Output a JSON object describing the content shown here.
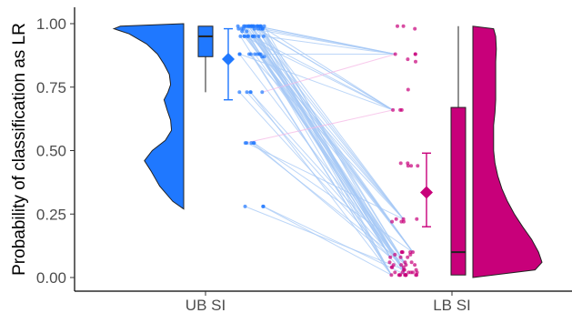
{
  "chart_data": {
    "type": "scatter",
    "subtype": "raincloud",
    "title": "",
    "xlabel": "",
    "ylabel": "Probability of classification as LR",
    "categories": [
      "UB SI",
      "LB SI"
    ],
    "ylim": [
      -0.05,
      1.05
    ],
    "yticks": [
      0.0,
      0.25,
      0.5,
      0.75,
      1.0
    ],
    "ytick_labels": [
      "0.00",
      "0.25",
      "0.50",
      "0.75",
      "1.00"
    ],
    "grid": false,
    "legend": "none",
    "colors": {
      "ub": "#1f78ff",
      "lb": "#c8007a",
      "pair_line_default": "#a6c8f5",
      "pair_line_increase": "#f5b8e6",
      "axis": "#000000"
    },
    "series": [
      {
        "name": "UB SI",
        "density": [
          [
            0.27,
            0.0
          ],
          [
            0.3,
            0.25
          ],
          [
            0.36,
            0.55
          ],
          [
            0.42,
            0.75
          ],
          [
            0.46,
            0.9
          ],
          [
            0.5,
            0.72
          ],
          [
            0.54,
            0.42
          ],
          [
            0.58,
            0.28
          ],
          [
            0.62,
            0.3
          ],
          [
            0.66,
            0.38
          ],
          [
            0.7,
            0.45
          ],
          [
            0.73,
            0.36
          ],
          [
            0.76,
            0.3
          ],
          [
            0.8,
            0.33
          ],
          [
            0.84,
            0.45
          ],
          [
            0.88,
            0.6
          ],
          [
            0.92,
            0.85
          ],
          [
            0.96,
            1.25
          ],
          [
            0.98,
            1.6
          ],
          [
            0.99,
            1.45
          ],
          [
            1.0,
            0.0
          ]
        ],
        "box": {
          "min": 0.73,
          "q1": 0.87,
          "median": 0.95,
          "q3": 0.99,
          "max": 0.99
        },
        "mean": 0.86,
        "ci": [
          0.7,
          0.98
        ],
        "points": [
          0.99,
          0.99,
          0.99,
          0.99,
          0.99,
          0.99,
          0.99,
          0.99,
          0.99,
          0.99,
          0.99,
          0.99,
          0.99,
          0.99,
          0.99,
          0.99,
          0.99,
          0.99,
          0.99,
          0.99,
          0.98,
          0.98,
          0.98,
          0.98,
          0.98,
          0.98,
          0.98,
          0.98,
          0.97,
          0.97,
          0.95,
          0.95,
          0.95,
          0.95,
          0.95,
          0.95,
          0.95,
          0.95,
          0.95,
          0.95,
          0.88,
          0.88,
          0.88,
          0.88,
          0.88,
          0.88,
          0.88,
          0.88,
          0.87,
          0.87,
          0.73,
          0.73,
          0.73,
          0.73,
          0.73,
          0.53,
          0.53,
          0.53,
          0.53,
          0.53,
          0.28,
          0.28,
          0.28
        ]
      },
      {
        "name": "LB SI",
        "density": [
          [
            0.0,
            0.0
          ],
          [
            0.03,
            0.9
          ],
          [
            0.06,
            1.0
          ],
          [
            0.1,
            0.95
          ],
          [
            0.15,
            0.85
          ],
          [
            0.2,
            0.72
          ],
          [
            0.25,
            0.6
          ],
          [
            0.3,
            0.5
          ],
          [
            0.35,
            0.42
          ],
          [
            0.4,
            0.36
          ],
          [
            0.45,
            0.32
          ],
          [
            0.5,
            0.3
          ],
          [
            0.55,
            0.3
          ],
          [
            0.6,
            0.3
          ],
          [
            0.65,
            0.32
          ],
          [
            0.7,
            0.33
          ],
          [
            0.75,
            0.33
          ],
          [
            0.8,
            0.33
          ],
          [
            0.85,
            0.33
          ],
          [
            0.9,
            0.34
          ],
          [
            0.95,
            0.33
          ],
          [
            0.98,
            0.3
          ],
          [
            0.99,
            0.0
          ]
        ],
        "box": {
          "min": 0.01,
          "q1": 0.01,
          "median": 0.1,
          "q3": 0.67,
          "max": 0.99
        },
        "mean": 0.335,
        "ci": [
          0.2,
          0.49
        ],
        "points": [
          0.01,
          0.01,
          0.01,
          0.01,
          0.01,
          0.01,
          0.01,
          0.01,
          0.01,
          0.01,
          0.01,
          0.02,
          0.02,
          0.02,
          0.02,
          0.02,
          0.02,
          0.03,
          0.03,
          0.03,
          0.04,
          0.04,
          0.04,
          0.05,
          0.05,
          0.05,
          0.05,
          0.06,
          0.06,
          0.06,
          0.08,
          0.08,
          0.08,
          0.09,
          0.09,
          0.1,
          0.1,
          0.1,
          0.1,
          0.1,
          0.22,
          0.22,
          0.22,
          0.23,
          0.23,
          0.23,
          0.44,
          0.44,
          0.44,
          0.45,
          0.45,
          0.66,
          0.66,
          0.66,
          0.74,
          0.85,
          0.86,
          0.88,
          0.88,
          0.88,
          0.98,
          0.99,
          0.99
        ]
      }
    ]
  }
}
